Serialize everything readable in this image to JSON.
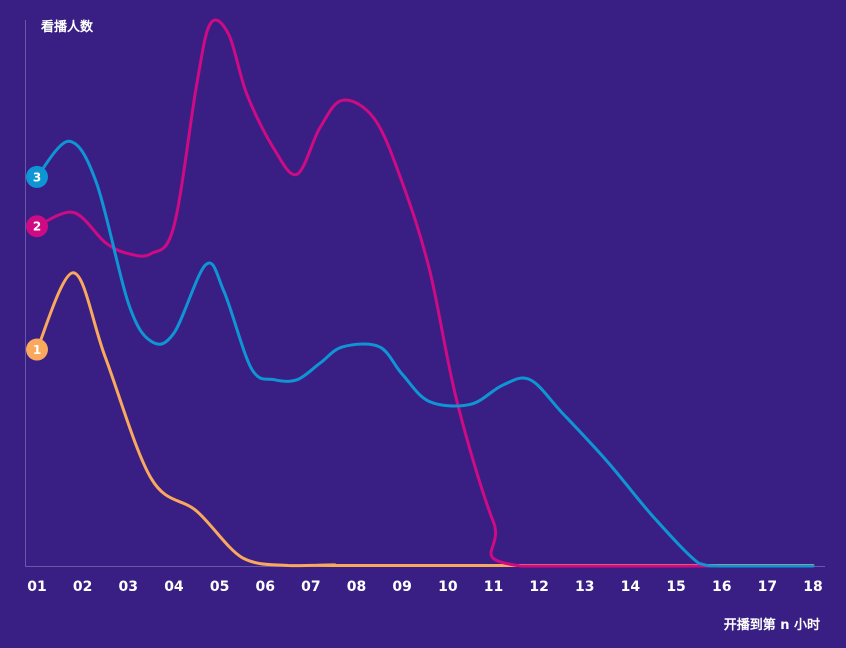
{
  "chart_data": {
    "type": "line",
    "ylabel": "看播人数",
    "xlabel": "开播到第 n 小时",
    "categories": [
      "01",
      "02",
      "03",
      "04",
      "05",
      "06",
      "07",
      "08",
      "09",
      "10",
      "11",
      "12",
      "13",
      "14",
      "15",
      "16",
      "17",
      "18"
    ],
    "ylim": [
      0,
      100
    ],
    "grid": false,
    "series": [
      {
        "label": "1",
        "color": "#f9a85d",
        "points": [
          [
            1,
            39.5
          ],
          [
            1.8,
            53.5
          ],
          [
            2.5,
            38
          ],
          [
            3.5,
            16
          ],
          [
            4.5,
            10
          ],
          [
            5.5,
            1.5
          ],
          [
            6.5,
            0.1
          ],
          [
            7.5,
            0.2
          ],
          [
            8,
            0.1
          ],
          [
            18,
            0.1
          ]
        ]
      },
      {
        "label": "2",
        "color": "#ce0b84",
        "points": [
          [
            1,
            62
          ],
          [
            1.8,
            64.5
          ],
          [
            2.5,
            59
          ],
          [
            3,
            57
          ],
          [
            3.5,
            57
          ],
          [
            4,
            62
          ],
          [
            4.5,
            88
          ],
          [
            4.8,
            99
          ],
          [
            5.2,
            97
          ],
          [
            5.6,
            86
          ],
          [
            6.2,
            76
          ],
          [
            6.7,
            71.5
          ],
          [
            7.2,
            80
          ],
          [
            7.7,
            85
          ],
          [
            8.4,
            81.5
          ],
          [
            9,
            70
          ],
          [
            9.6,
            54
          ],
          [
            10.2,
            30
          ],
          [
            11,
            8
          ],
          [
            11.6,
            0
          ],
          [
            18,
            0
          ]
        ]
      },
      {
        "label": "3",
        "color": "#0f95d4",
        "points": [
          [
            1,
            71
          ],
          [
            1.7,
            77.5
          ],
          [
            2.3,
            70
          ],
          [
            3,
            48
          ],
          [
            3.5,
            41
          ],
          [
            4,
            42.5
          ],
          [
            4.7,
            55
          ],
          [
            5.1,
            50
          ],
          [
            5.7,
            36
          ],
          [
            6.2,
            34
          ],
          [
            6.7,
            34
          ],
          [
            7.2,
            37
          ],
          [
            7.7,
            40
          ],
          [
            8.5,
            40
          ],
          [
            9,
            35
          ],
          [
            9.6,
            30
          ],
          [
            10.5,
            29.5
          ],
          [
            11.2,
            33
          ],
          [
            11.8,
            34
          ],
          [
            12.5,
            28
          ],
          [
            13.5,
            19
          ],
          [
            14.5,
            9
          ],
          [
            15.5,
            0.5
          ],
          [
            16,
            0
          ],
          [
            18,
            0
          ]
        ]
      }
    ]
  }
}
